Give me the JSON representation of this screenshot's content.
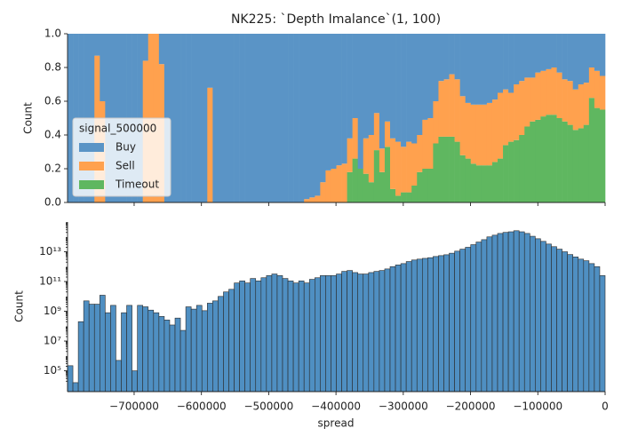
{
  "chart_data": [
    {
      "type": "histogram",
      "title": "NK225: `Depth Imalance`(1, 100)",
      "ylabel": "Count",
      "multiple": "fill",
      "legend_title": "signal_500000",
      "legend": "center left",
      "bins": [
        -799000,
        -791010,
        -783020,
        -775030,
        -767040,
        -759050,
        -751060,
        -743070,
        -735080,
        -727090,
        -719100,
        -711110,
        -703120,
        -695130,
        -687140,
        -679150,
        -671160,
        -663170,
        -655180,
        -647190,
        -639200,
        -631210,
        -623220,
        -615230,
        -607240,
        -599250,
        -591260,
        -583270,
        -575280,
        -567290,
        -559300,
        -551310,
        -543320,
        -535330,
        -527340,
        -519350,
        -511360,
        -503370,
        -495380,
        -487390,
        -479400,
        -471410,
        -463420,
        -455430,
        -447440,
        -439450,
        -431460,
        -423470,
        -415480,
        -407490,
        -399500,
        -391510,
        -383520,
        -375530,
        -367540,
        -359550,
        -351560,
        -343570,
        -335580,
        -327590,
        -319600,
        -311610,
        -303620,
        -295630,
        -287640,
        -279650,
        -271660,
        -263670,
        -255680,
        -247690,
        -239700,
        -231710,
        -223720,
        -215730,
        -207740,
        -199750,
        -191760,
        -183770,
        -175780,
        -167790,
        -159800,
        -151810,
        -143820,
        -135830,
        -127840,
        -119850,
        -111860,
        -103870,
        -95880,
        -87890,
        -79900,
        -71910,
        -63920,
        -55930,
        -47940,
        -39950,
        -31960,
        -23970,
        -15980,
        -7990,
        0
      ],
      "series": [
        {
          "name": "Buy",
          "color": "#5a94c6",
          "values": [
            1,
            1,
            1,
            1,
            1,
            0.13,
            0.4,
            1,
            1,
            1,
            1,
            1,
            1,
            1,
            0.16,
            0,
            0,
            0.18,
            1,
            1,
            1,
            1,
            1,
            1,
            1,
            1,
            0.32,
            1,
            1,
            1,
            1,
            1,
            1,
            1,
            1,
            1,
            1,
            1,
            1,
            1,
            1,
            1,
            1,
            1,
            0.98,
            0.97,
            0.96,
            0.88,
            0.81,
            0.8,
            0.78,
            0.77,
            0.62,
            0.5,
            0.8,
            0.62,
            0.6,
            0.47,
            0.68,
            0.52,
            0.62,
            0.64,
            0.67,
            0.64,
            0.65,
            0.6,
            0.51,
            0.5,
            0.4,
            0.28,
            0.27,
            0.24,
            0.27,
            0.37,
            0.41,
            0.42,
            0.42,
            0.42,
            0.41,
            0.39,
            0.35,
            0.33,
            0.35,
            0.3,
            0.28,
            0.26,
            0.26,
            0.23,
            0.22,
            0.21,
            0.2,
            0.23,
            0.27,
            0.28,
            0.33,
            0.3,
            0.29,
            0.2,
            0.22,
            0.25
          ]
        },
        {
          "name": "Sell",
          "color": "#ffa14e",
          "values": [
            0,
            0,
            0,
            0,
            0,
            0.87,
            0.6,
            0,
            0,
            0,
            0,
            0,
            0,
            0,
            0.84,
            1,
            1,
            0.82,
            0,
            0,
            0,
            0,
            0,
            0,
            0,
            0,
            0.68,
            0,
            0,
            0,
            0,
            0,
            0,
            0,
            0,
            0,
            0,
            0,
            0,
            0,
            0,
            0,
            0,
            0,
            0.02,
            0.03,
            0.04,
            0.12,
            0.19,
            0.2,
            0.22,
            0.23,
            0.2,
            0.24,
            0,
            0.21,
            0.28,
            0.22,
            0.14,
            0.15,
            0.3,
            0.32,
            0.27,
            0.3,
            0.25,
            0.22,
            0.29,
            0.3,
            0.25,
            0.33,
            0.34,
            0.37,
            0.37,
            0.35,
            0.33,
            0.35,
            0.36,
            0.36,
            0.37,
            0.37,
            0.39,
            0.33,
            0.29,
            0.33,
            0.32,
            0.29,
            0.26,
            0.28,
            0.27,
            0.27,
            0.28,
            0.27,
            0.25,
            0.26,
            0.24,
            0.26,
            0.25,
            0.18,
            0.22,
            0.2
          ]
        },
        {
          "name": "Timeout",
          "color": "#5fb760",
          "values": [
            0,
            0,
            0,
            0,
            0,
            0,
            0,
            0,
            0,
            0,
            0,
            0,
            0,
            0,
            0,
            0,
            0,
            0,
            0,
            0,
            0,
            0,
            0,
            0,
            0,
            0,
            0,
            0,
            0,
            0,
            0,
            0,
            0,
            0,
            0,
            0,
            0,
            0,
            0,
            0,
            0,
            0,
            0,
            0,
            0,
            0,
            0,
            0,
            0,
            0,
            0,
            0,
            0.18,
            0.26,
            0.2,
            0.17,
            0.12,
            0.31,
            0.18,
            0.33,
            0.08,
            0.04,
            0.06,
            0.06,
            0.1,
            0.18,
            0.2,
            0.2,
            0.35,
            0.39,
            0.39,
            0.39,
            0.36,
            0.28,
            0.26,
            0.23,
            0.22,
            0.22,
            0.22,
            0.24,
            0.26,
            0.34,
            0.36,
            0.37,
            0.4,
            0.45,
            0.48,
            0.49,
            0.51,
            0.52,
            0.52,
            0.5,
            0.48,
            0.46,
            0.43,
            0.44,
            0.46,
            0.62,
            0.56,
            0.55
          ]
        }
      ],
      "xlim": [
        -799000,
        0
      ],
      "ylim": [
        0,
        1
      ],
      "yticks": [
        {
          "value": 0,
          "label": "0.0"
        },
        0.2,
        0.4,
        0.6,
        0.8,
        {
          "value": 1,
          "label": "1.0"
        }
      ]
    },
    {
      "type": "histogram",
      "ylabel": "Count",
      "xlabel": "spread",
      "log": true,
      "color": "#4f8fc2",
      "bins": [
        -799000,
        -791010,
        -783020,
        -775030,
        -767040,
        -759050,
        -751060,
        -743070,
        -735080,
        -727090,
        -719100,
        -711110,
        -703120,
        -695130,
        -687140,
        -679150,
        -671160,
        -663170,
        -655180,
        -647190,
        -639200,
        -631210,
        -623220,
        -615230,
        -607240,
        -599250,
        -591260,
        -583270,
        -575280,
        -567290,
        -559300,
        -551310,
        -543320,
        -535330,
        -527340,
        -519350,
        -511360,
        -503370,
        -495380,
        -487390,
        -479400,
        -471410,
        -463420,
        -455430,
        -447440,
        -439450,
        -431460,
        -423470,
        -415480,
        -407490,
        -399500,
        -391510,
        -383520,
        -375530,
        -367540,
        -359550,
        -351560,
        -343570,
        -335580,
        -327590,
        -319600,
        -311610,
        -303620,
        -295630,
        -287640,
        -279650,
        -271660,
        -263670,
        -255680,
        -247690,
        -239700,
        -231710,
        -223720,
        -215730,
        -207740,
        -199750,
        -191760,
        -183770,
        -175780,
        -167790,
        -159800,
        -151810,
        -143820,
        -135830,
        -127840,
        -119850,
        -111860,
        -103870,
        -95880,
        -87890,
        -79900,
        -71910,
        -63920,
        -55930,
        -47940,
        -39950,
        -31960,
        -23970,
        -15980,
        -7990,
        0
      ],
      "values": [
        220000.0,
        16000.0,
        200000000.0,
        5000000000.0,
        3000000000.0,
        3000000000.0,
        12000000000.0,
        800000000.0,
        2500000000.0,
        500000.0,
        800000000.0,
        2500000000.0,
        100000.0,
        2500000000.0,
        2000000000.0,
        1200000000.0,
        800000000.0,
        450000000.0,
        260000000.0,
        120000000.0,
        350000000.0,
        52000000.0,
        2000000000.0,
        1400000000.0,
        2500000000.0,
        1100000000.0,
        3500000000.0,
        5000000000.0,
        10000000000.0,
        20000000000.0,
        30000000000.0,
        80000000000.0,
        110000000000.0,
        80000000000.0,
        160000000000.0,
        110000000000.0,
        180000000000.0,
        250000000000.0,
        320000000000.0,
        250000000000.0,
        160000000000.0,
        110000000000.0,
        80000000000.0,
        110000000000.0,
        80000000000.0,
        140000000000.0,
        180000000000.0,
        250000000000.0,
        250000000000.0,
        250000000000.0,
        320000000000.0,
        480000000000.0,
        550000000000.0,
        400000000000.0,
        320000000000.0,
        320000000000.0,
        400000000000.0,
        480000000000.0,
        550000000000.0,
        700000000000.0,
        1000000000000.0,
        1300000000000.0,
        1600000000000.0,
        2200000000000.0,
        2800000000000.0,
        3200000000000.0,
        3600000000000.0,
        4000000000000.0,
        4800000000000.0,
        5500000000000.0,
        6300000000000.0,
        8000000000000.0,
        11000000000000.0,
        15000000000000.0,
        20000000000000.0,
        30000000000000.0,
        45000000000000.0,
        65000000000000.0,
        100000000000000.0,
        130000000000000.0,
        170000000000000.0,
        200000000000000.0,
        220000000000000.0,
        260000000000000.0,
        220000000000000.0,
        170000000000000.0,
        110000000000000.0,
        75000000000000.0,
        50000000000000.0,
        33000000000000.0,
        22000000000000.0,
        15000000000000.0,
        10000000000000.0,
        6500000000000.0,
        4500000000000.0,
        3200000000000.0,
        2500000000000.0,
        1600000000000.0,
        1000000000000.0,
        250000000000.0
      ],
      "xlim": [
        -799000,
        0
      ],
      "xticks": [
        {
          "value": -700000,
          "label": "−700000"
        },
        {
          "value": -600000,
          "label": "−600000"
        },
        {
          "value": -500000,
          "label": "−500000"
        },
        {
          "value": -400000,
          "label": "−400000"
        },
        {
          "value": -300000,
          "label": "−300000"
        },
        {
          "value": -200000,
          "label": "−200000"
        },
        {
          "value": -100000,
          "label": "−100000"
        },
        0
      ],
      "ylim": [
        4000,
        1000000000000000.0
      ],
      "yticks": [
        {
          "value": 100000.0,
          "label": "10⁵"
        },
        {
          "value": 10000000.0,
          "label": "10⁷"
        },
        {
          "value": 1000000000.0,
          "label": "10⁹"
        },
        {
          "value": 100000000000.0,
          "label": "10¹¹"
        },
        {
          "value": 10000000000000.0,
          "label": "10¹³"
        }
      ]
    }
  ]
}
